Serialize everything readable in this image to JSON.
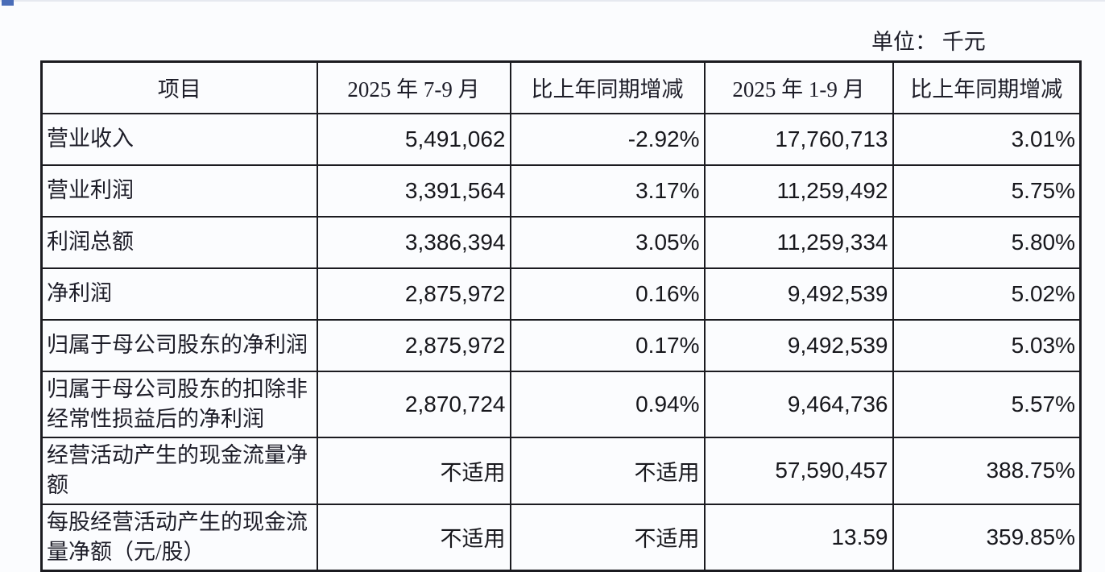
{
  "page": {
    "unit_label": "单位： 千元",
    "background": "#fbfcfe",
    "border_color": "#1b1b20",
    "text_color": "#1d1d28",
    "corner_mark_color": "#4a6db8",
    "not_applicable_text": "不适用"
  },
  "table": {
    "columns": [
      "项目",
      "2025 年 7-9 月",
      "比上年同期增减",
      "2025 年 1-9 月",
      "比上年同期增减"
    ],
    "rows": [
      {
        "label": "营业收入",
        "values": [
          "5,491,062",
          "-2.92%",
          "17,760,713",
          "3.01%"
        ]
      },
      {
        "label": "营业利润",
        "values": [
          "3,391,564",
          "3.17%",
          "11,259,492",
          "5.75%"
        ]
      },
      {
        "label": "利润总额",
        "values": [
          "3,386,394",
          "3.05%",
          "11,259,334",
          "5.80%"
        ]
      },
      {
        "label": "净利润",
        "values": [
          "2,875,972",
          "0.16%",
          "9,492,539",
          "5.02%"
        ]
      },
      {
        "label": "归属于母公司股东的净利润",
        "values": [
          "2,875,972",
          "0.17%",
          "9,492,539",
          "5.03%"
        ]
      },
      {
        "label": "归属于母公司股东的扣除非经常性损益后的净利润",
        "values": [
          "2,870,724",
          "0.94%",
          "9,464,736",
          "5.57%"
        ]
      },
      {
        "label": "经营活动产生的现金流量净额",
        "values": [
          "不适用",
          "不适用",
          "57,590,457",
          "388.75%"
        ]
      },
      {
        "label": "每股经营活动产生的现金流量净额（元/股）",
        "values": [
          "不适用",
          "不适用",
          "13.59",
          "359.85%"
        ]
      }
    ]
  }
}
